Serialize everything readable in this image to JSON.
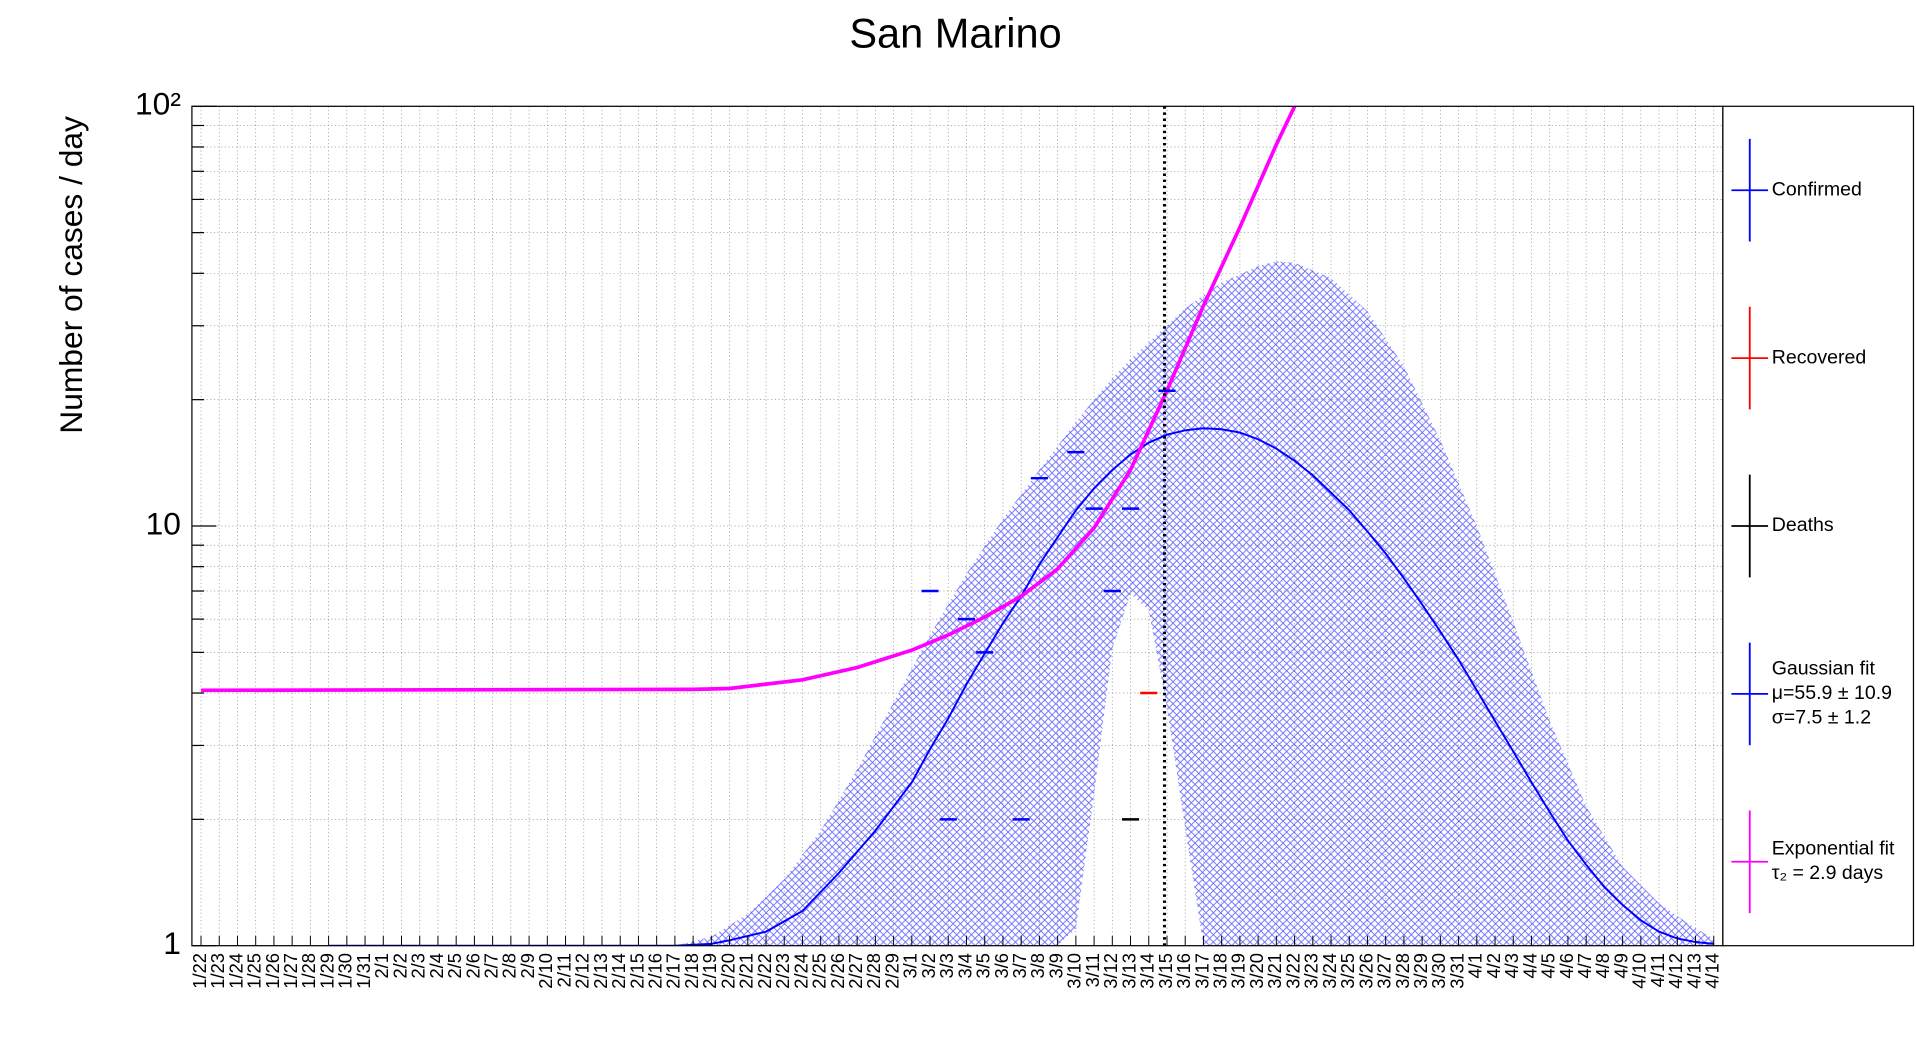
{
  "chart_data": {
    "type": "points",
    "title": "San Marino",
    "y_label": "Number of cases / day",
    "log_y": true,
    "grid": true,
    "ylim": [
      1,
      100
    ],
    "yticks": [
      1,
      10,
      {
        "value": 100,
        "label": "10²"
      }
    ],
    "yminor_ticks": [
      2,
      3,
      4,
      5,
      6,
      7,
      8,
      9,
      20,
      30,
      40,
      50,
      60,
      70,
      80,
      90
    ],
    "categories": [
      "1/22",
      "1/23",
      "1/24",
      "1/25",
      "1/26",
      "1/27",
      "1/28",
      "1/29",
      "1/30",
      "1/31",
      "2/1",
      "2/2",
      "2/3",
      "2/4",
      "2/5",
      "2/6",
      "2/7",
      "2/8",
      "2/9",
      "2/10",
      "2/11",
      "2/12",
      "2/13",
      "2/14",
      "2/15",
      "2/16",
      "2/17",
      "2/18",
      "2/19",
      "2/20",
      "2/21",
      "2/22",
      "2/23",
      "2/24",
      "2/25",
      "2/26",
      "2/27",
      "2/28",
      "2/29",
      "3/1",
      "3/2",
      "3/3",
      "3/4",
      "3/5",
      "3/6",
      "3/7",
      "3/8",
      "3/9",
      "3/10",
      "3/11",
      "3/12",
      "3/13",
      "3/14",
      "3/15",
      "3/16",
      "3/17",
      "3/18",
      "3/19",
      "3/20",
      "3/21",
      "3/22",
      "3/23",
      "3/24",
      "3/25",
      "3/26",
      "3/27",
      "3/28",
      "3/29",
      "3/30",
      "3/31",
      "4/1",
      "4/2",
      "4/3",
      "4/4",
      "4/5",
      "4/6",
      "4/7",
      "4/8",
      "4/9",
      "4/10",
      "4/11",
      "4/12",
      "4/13",
      "4/14"
    ],
    "series": [
      {
        "name": "Confirmed",
        "color": "#0000ff",
        "values": [
          null,
          null,
          null,
          null,
          null,
          null,
          null,
          null,
          null,
          null,
          null,
          null,
          null,
          null,
          null,
          null,
          null,
          null,
          null,
          null,
          null,
          null,
          null,
          null,
          null,
          null,
          null,
          null,
          null,
          null,
          null,
          null,
          null,
          null,
          null,
          null,
          null,
          null,
          null,
          null,
          7,
          2,
          6,
          5,
          null,
          2,
          13,
          null,
          15,
          11,
          7,
          11,
          null,
          21,
          null,
          null,
          null,
          null,
          null,
          null,
          null,
          null,
          null,
          null,
          null,
          null,
          null,
          null,
          null,
          null,
          null,
          null,
          null,
          null,
          null,
          null,
          null,
          null,
          null,
          null,
          null,
          null,
          null,
          null
        ]
      },
      {
        "name": "Recovered",
        "color": "#ff0000",
        "values": [
          null,
          null,
          null,
          null,
          null,
          null,
          null,
          null,
          null,
          null,
          null,
          null,
          null,
          null,
          null,
          null,
          null,
          null,
          null,
          null,
          null,
          null,
          null,
          null,
          null,
          null,
          null,
          null,
          null,
          null,
          null,
          null,
          null,
          null,
          null,
          null,
          null,
          null,
          null,
          null,
          null,
          null,
          null,
          null,
          null,
          null,
          null,
          null,
          null,
          null,
          null,
          null,
          4,
          null,
          null,
          null,
          null,
          null,
          null,
          null,
          null,
          null,
          null,
          null,
          null,
          null,
          null,
          null,
          null,
          null,
          null,
          null,
          null,
          null,
          null,
          null,
          null,
          null,
          null,
          null,
          null,
          null,
          null,
          null
        ]
      },
      {
        "name": "Deaths",
        "color": "#000000",
        "values": [
          null,
          null,
          null,
          null,
          null,
          null,
          null,
          null,
          null,
          null,
          null,
          null,
          null,
          null,
          null,
          null,
          null,
          null,
          null,
          null,
          null,
          null,
          null,
          null,
          null,
          null,
          null,
          null,
          null,
          null,
          null,
          null,
          null,
          null,
          null,
          null,
          null,
          null,
          null,
          null,
          null,
          null,
          null,
          null,
          null,
          null,
          null,
          null,
          null,
          null,
          null,
          2,
          null,
          null,
          null,
          null,
          null,
          null,
          null,
          null,
          null,
          null,
          null,
          null,
          null,
          null,
          null,
          null,
          null,
          null,
          null,
          null,
          null,
          null,
          null,
          null,
          null,
          null,
          null,
          null,
          null,
          null,
          null,
          null
        ]
      }
    ],
    "band": {
      "color": "#0000ff",
      "x": [
        "2/17",
        "2/19",
        "2/21",
        "2/23",
        "2/25",
        "2/27",
        "2/29",
        "3/2",
        "3/4",
        "3/6",
        "3/8",
        "3/9",
        "3/10",
        "3/11",
        "3/12",
        "3/13",
        "3/14",
        "3/15",
        "3/16",
        "3/17",
        "3/18",
        "3/20",
        "3/21",
        "3/22",
        "3/24",
        "3/26",
        "3/28",
        "3/30",
        "4/1",
        "4/3",
        "4/5",
        "4/7",
        "4/9",
        "4/11",
        "4/13",
        "4/14"
      ],
      "high": [
        1,
        1.05,
        1.19,
        1.44,
        1.88,
        2.63,
        3.8,
        5.5,
        7.7,
        10.4,
        13.6,
        15.5,
        17.7,
        20,
        22.5,
        25,
        27.4,
        30,
        33,
        35.5,
        38,
        41.6,
        42.7,
        42.4,
        39,
        32.5,
        24,
        16,
        10,
        5.9,
        3.43,
        2.15,
        1.54,
        1.26,
        1.1,
        1.04
      ],
      "low": [
        1,
        1,
        1,
        1,
        1,
        1,
        1,
        1,
        1,
        1,
        1,
        1,
        1.1,
        2.3,
        5.1,
        6.9,
        6.3,
        3.7,
        1.9,
        1,
        1,
        1,
        1,
        1,
        1,
        1,
        1,
        1,
        1,
        1,
        1,
        1,
        1,
        1,
        1,
        1
      ]
    },
    "curves": [
      {
        "name": "Gaussian fit",
        "notes": [
          "μ=55.9 ± 10.9",
          "σ=7.5 ± 1.2"
        ],
        "color": "#0000ff",
        "x": [
          "1/29",
          "2/17",
          "2/19",
          "2/20",
          "2/22",
          "2/24",
          "2/26",
          "2/28",
          "3/1",
          "3/2",
          "3/3",
          "3/4",
          "3/5",
          "3/6",
          "3/7",
          "3/8",
          "3/9",
          "3/10",
          "3/11",
          "3/12",
          "3/13",
          "3/14",
          "3/15",
          "3/16",
          "3/17",
          "3/18",
          "3/19",
          "3/20",
          "3/21",
          "3/22",
          "3/23",
          "3/24",
          "3/25",
          "3/26",
          "3/27",
          "3/28",
          "3/29",
          "3/30",
          "3/31",
          "4/1",
          "4/2",
          "4/3",
          "4/4",
          "4/5",
          "4/6",
          "4/7",
          "4/8",
          "4/9",
          "4/10",
          "4/11",
          "4/12",
          "4/13",
          "4/14"
        ],
        "values": [
          1,
          1,
          1.01,
          1.03,
          1.08,
          1.21,
          1.49,
          1.88,
          2.45,
          2.94,
          3.48,
          4.2,
          4.97,
          5.87,
          6.8,
          8.1,
          9.4,
          10.9,
          12.3,
          13.6,
          14.8,
          15.8,
          16.5,
          16.9,
          17.1,
          17,
          16.7,
          16.1,
          15.3,
          14.3,
          13.2,
          12,
          10.9,
          9.7,
          8.6,
          7.5,
          6.5,
          5.6,
          4.8,
          4.06,
          3.43,
          2.9,
          2.45,
          2.08,
          1.78,
          1.56,
          1.38,
          1.25,
          1.15,
          1.08,
          1.04,
          1.02,
          1.01
        ]
      },
      {
        "name": "Exponential fit",
        "notes": [
          "τ₂ = 2.9 days"
        ],
        "color": "#ff00ff",
        "x": [
          "1/22",
          "2/18",
          "2/20",
          "2/24",
          "2/27",
          "3/1",
          "3/3",
          "3/5",
          "3/7",
          "3/9",
          "3/11",
          "3/13",
          "3/15",
          "3/17",
          "3/19",
          "3/21",
          "3/22"
        ],
        "values": [
          4.06,
          4.08,
          4.1,
          4.3,
          4.6,
          5.06,
          5.5,
          6.07,
          6.8,
          7.9,
          9.9,
          13.6,
          21,
          33.5,
          51.5,
          81,
          100
        ]
      }
    ]
  }
}
